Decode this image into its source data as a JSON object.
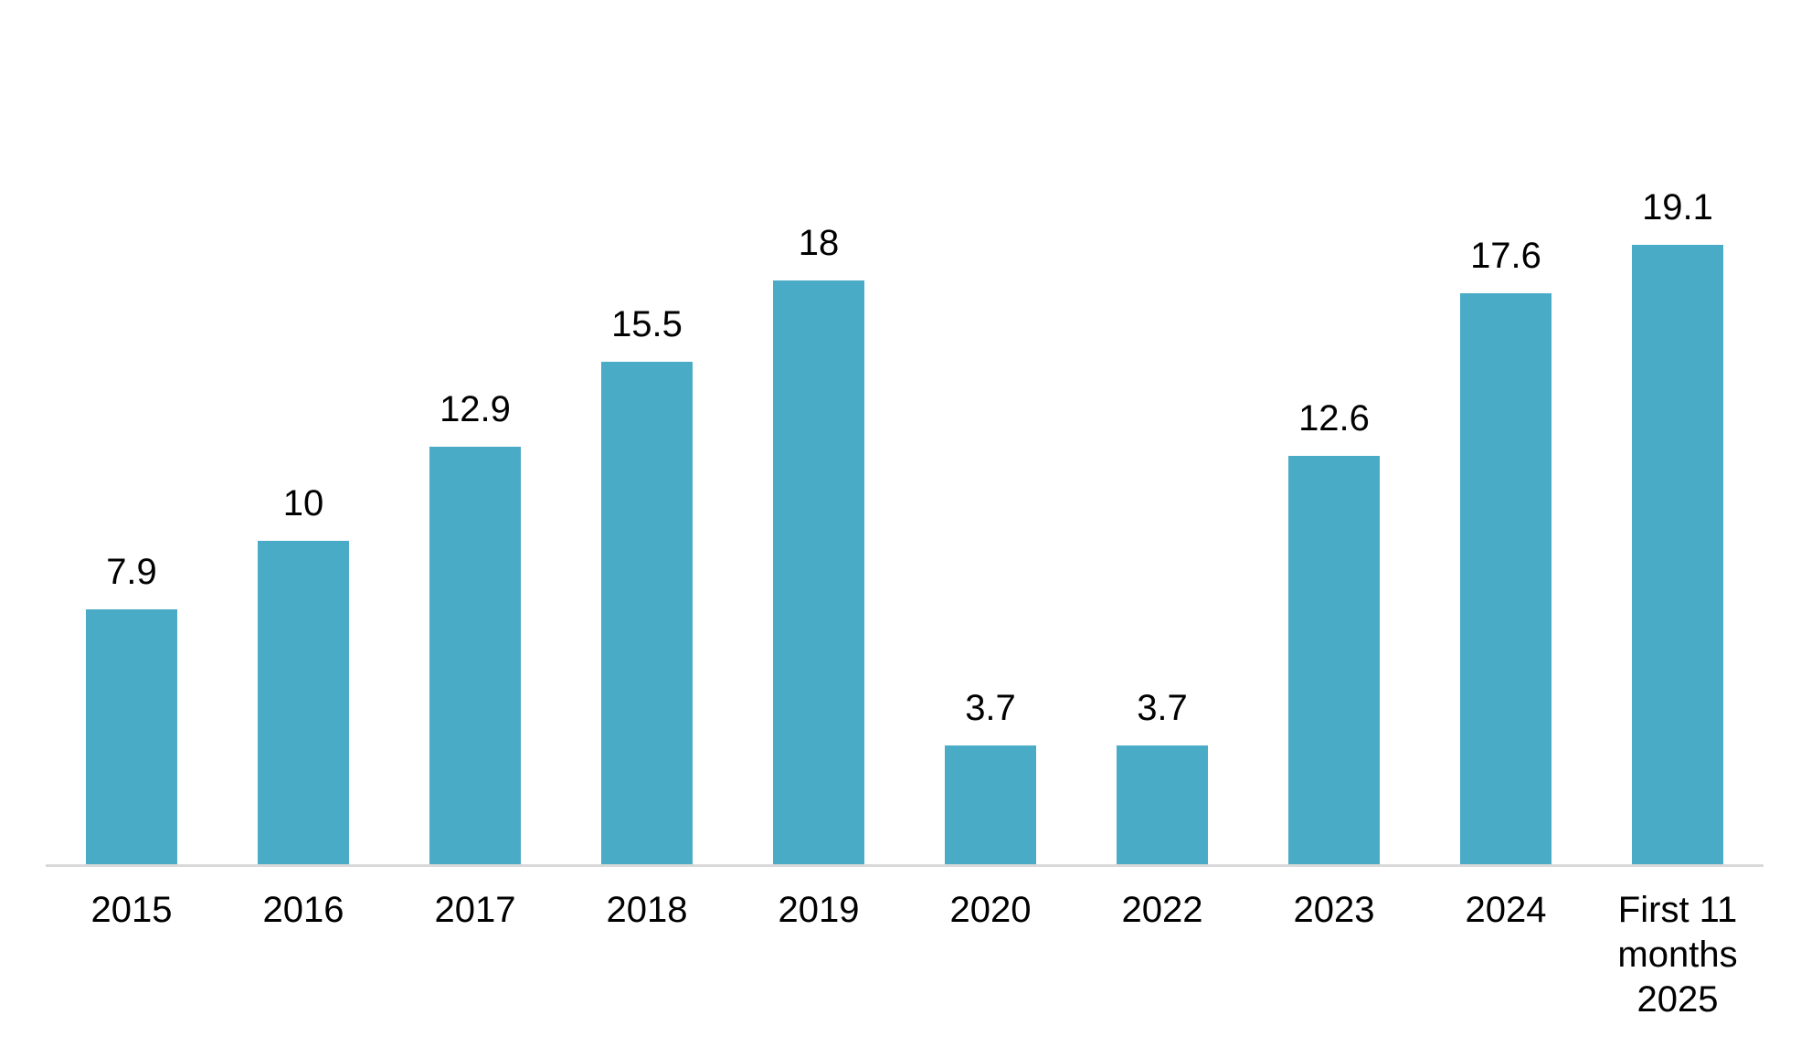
{
  "chart_data": {
    "type": "bar",
    "categories": [
      "2015",
      "2016",
      "2017",
      "2018",
      "2019",
      "2020",
      "2022",
      "2023",
      "2024",
      "First 11\nmonths\n2025"
    ],
    "values": [
      7.9,
      10,
      12.9,
      15.5,
      18,
      3.7,
      3.7,
      12.6,
      17.6,
      19.1
    ],
    "data_labels": [
      "7.9",
      "10",
      "12.9",
      "15.5",
      "18",
      "3.7",
      "3.7",
      "12.6",
      "17.6",
      "19.1"
    ],
    "title": "",
    "xlabel": "",
    "ylabel": "",
    "ylim": [
      0,
      19.7
    ],
    "grid": false,
    "legend": false,
    "bar_color": "#4AABC6",
    "axis_line_color": "#D9D9D9",
    "label_color": "#000000"
  }
}
